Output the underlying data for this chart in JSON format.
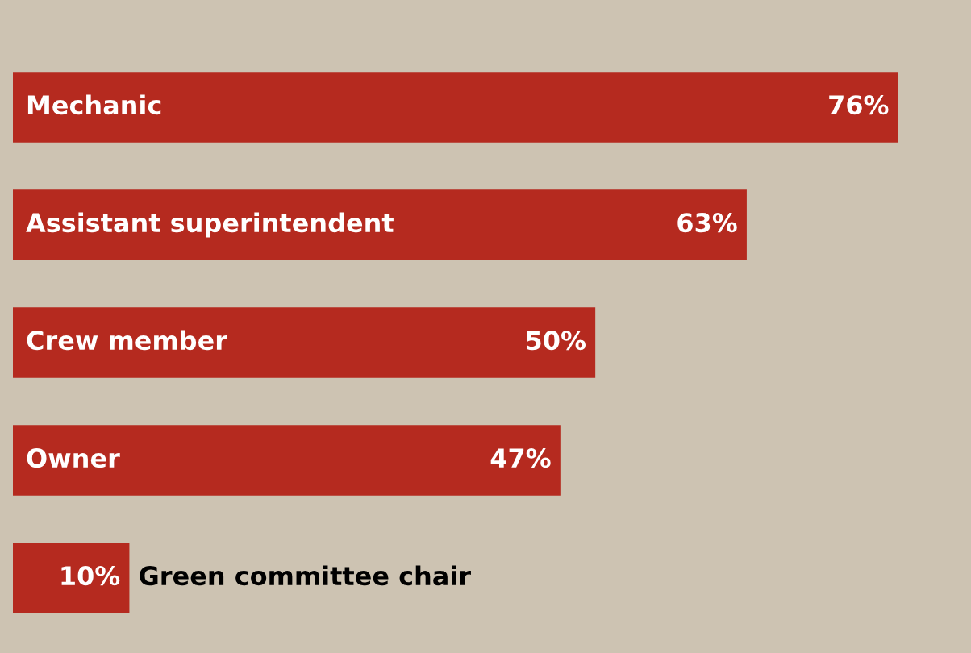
{
  "chart_data": {
    "type": "bar",
    "orientation": "horizontal",
    "categories": [
      "Mechanic",
      "Assistant superintendent",
      "Crew member",
      "Owner",
      "Green committee chair"
    ],
    "values": [
      76,
      63,
      50,
      47,
      10
    ],
    "value_labels": [
      "76%",
      "63%",
      "50%",
      "47%",
      "10%"
    ],
    "color": "#b52a1f"
  }
}
